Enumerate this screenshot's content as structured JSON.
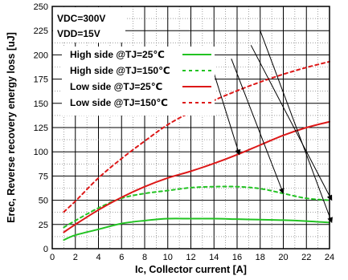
{
  "chart_data": {
    "type": "line",
    "title": "",
    "xlabel": "Ic, Collector current [A]",
    "ylabel": "Erec, Reverse recovery energy loss [uJ]",
    "xlim": [
      0,
      24
    ],
    "ylim": [
      0,
      250
    ],
    "x_ticks": [
      0,
      2,
      4,
      6,
      8,
      10,
      12,
      14,
      16,
      18,
      20,
      22,
      24
    ],
    "y_ticks": [
      0,
      25,
      50,
      75,
      100,
      125,
      150,
      175,
      200,
      225,
      250
    ],
    "x_tick_labels": [
      "0",
      "2",
      "4",
      "6",
      "8",
      "10",
      "12",
      "14",
      "16",
      "18",
      "20",
      "22",
      "24"
    ],
    "y_tick_labels": [
      "0",
      "25",
      "50",
      "75",
      "100",
      "125",
      "150",
      "175",
      "200",
      "225",
      "250"
    ],
    "grid": true,
    "legend_position": "top-left",
    "conditions": [
      "VDC=300V",
      "VDD=15V"
    ],
    "series": [
      {
        "name": "High side @TJ=25℃",
        "color": "#22c322",
        "dash": "solid",
        "x": [
          1,
          2,
          4,
          6,
          8,
          10,
          12,
          14,
          16,
          18,
          20,
          22,
          24
        ],
        "y": [
          9,
          14,
          20,
          26,
          29,
          31,
          31,
          31,
          30.5,
          30,
          29.5,
          28.5,
          27
        ]
      },
      {
        "name": "High side @TJ=150℃",
        "color": "#22c322",
        "dash": "dashed",
        "x": [
          1,
          2,
          4,
          6,
          8,
          10,
          12,
          14,
          16,
          18,
          20,
          22,
          24
        ],
        "y": [
          22,
          29,
          42,
          52,
          57,
          60,
          63,
          64,
          64,
          62,
          57,
          52,
          50
        ]
      },
      {
        "name": "Low side @TJ=25℃",
        "color": "#dd1818",
        "dash": "solid",
        "x": [
          1,
          2,
          4,
          6,
          8,
          10,
          12,
          14,
          16,
          18,
          20,
          22,
          24
        ],
        "y": [
          17,
          25,
          40,
          53,
          64,
          73,
          80,
          88,
          97,
          107,
          117,
          125,
          131
        ]
      },
      {
        "name": "Low side @TJ=150℃",
        "color": "#dd1818",
        "dash": "dashed",
        "x": [
          1,
          2,
          4,
          6,
          8,
          10,
          12,
          14,
          16,
          18,
          20,
          22,
          24
        ],
        "y": [
          38,
          49,
          73,
          93,
          111,
          128,
          141,
          153,
          163,
          172,
          180,
          187,
          193
        ]
      }
    ],
    "annotations": [
      {
        "from": [
          18,
          225
        ],
        "to": [
          24.2,
          27
        ]
      },
      {
        "from": [
          17.2,
          210
        ],
        "to": [
          24.2,
          50
        ]
      },
      {
        "from": [
          15.5,
          196
        ],
        "to": [
          20,
          57
        ]
      },
      {
        "from": [
          14,
          181
        ],
        "to": [
          16.2,
          97
        ]
      }
    ]
  }
}
